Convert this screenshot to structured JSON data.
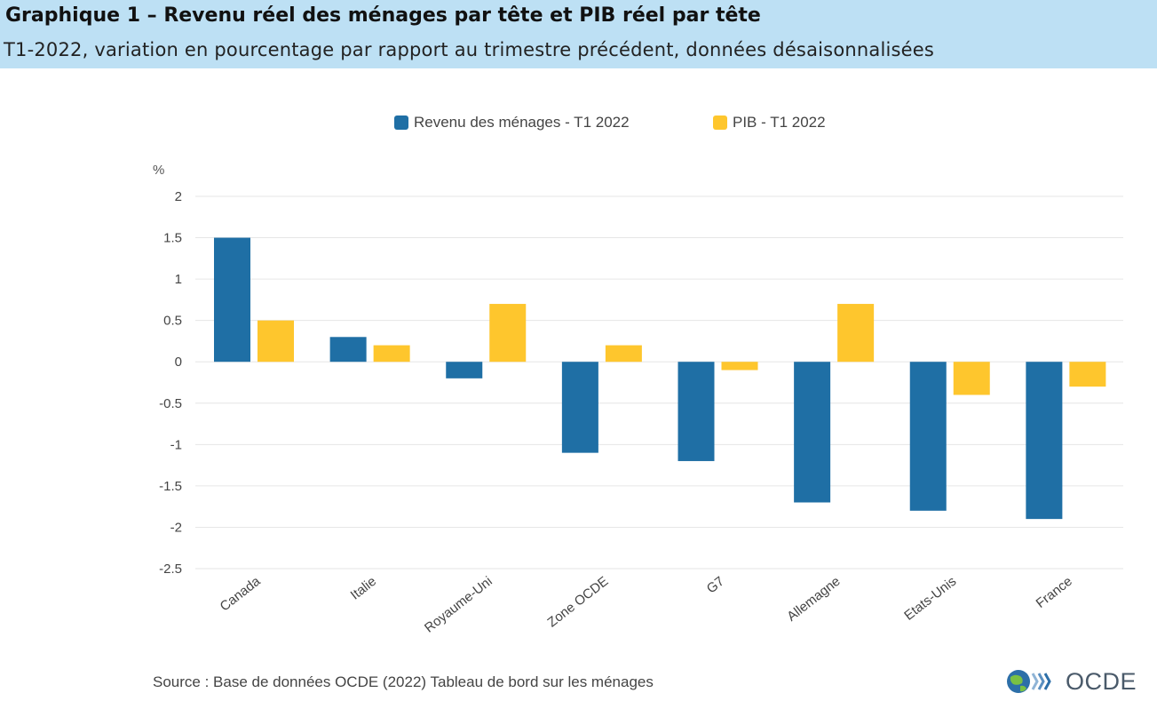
{
  "header": {
    "title": "Graphique 1 – Revenu réel des ménages par tête et PIB réel par tête",
    "subtitle": "T1-2022, variation en pourcentage par rapport au trimestre précédent, données désaisonnalisées"
  },
  "colors": {
    "header_bg": "#bde0f4",
    "series_1": "#1f6fa5",
    "series_2": "#fec62d",
    "gridline": "#e6e6e6"
  },
  "chart_data": {
    "type": "bar",
    "title": "",
    "xlabel": "",
    "ylabel": "%",
    "ylim": [
      -2.5,
      2
    ],
    "yticks": [
      "2",
      "1.5",
      "1",
      "0.5",
      "0",
      "-0.5",
      "-1",
      "-1.5",
      "-2",
      "-2.5"
    ],
    "grid": true,
    "legend_position": "top-center",
    "categories": [
      "Canada",
      "Italie",
      "Royaume-Uni",
      "Zone OCDE",
      "G7",
      "Allemagne",
      "Etats-Unis",
      "France"
    ],
    "series": [
      {
        "name": "Revenu des ménages - T1 2022",
        "color": "#1f6fa5",
        "values": [
          1.5,
          0.3,
          -0.2,
          -1.1,
          -1.2,
          -1.7,
          -1.8,
          -1.9
        ]
      },
      {
        "name": "PIB - T1 2022",
        "color": "#fec62d",
        "values": [
          0.5,
          0.2,
          0.7,
          0.2,
          -0.1,
          0.7,
          -0.4,
          -0.3
        ]
      }
    ]
  },
  "footer": {
    "source": "Source : Base de données OCDE (2022) Tableau de bord sur les ménages",
    "logo_text": "OCDE",
    "logo_icon": "oecd-globe-icon"
  }
}
